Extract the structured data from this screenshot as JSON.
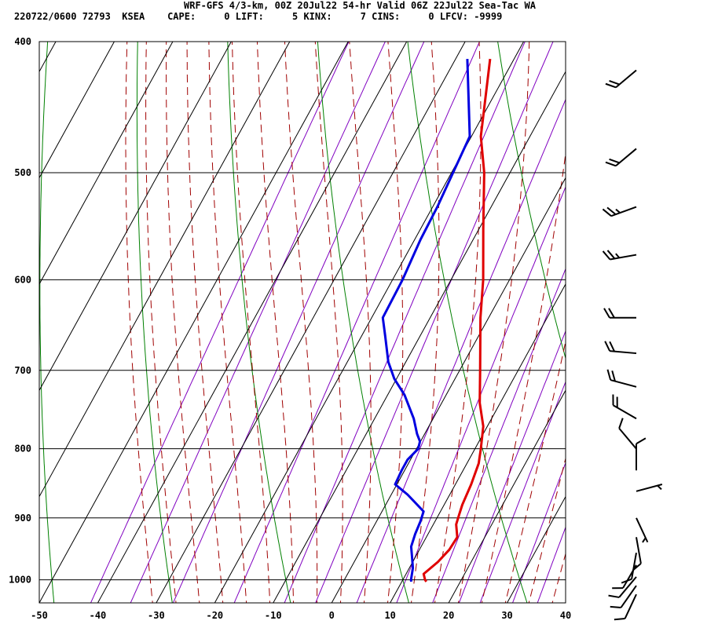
{
  "header": {
    "line1": "WRF-GFS 4/3-km, 00Z 20Jul22 54-hr Valid 06Z 22Jul22 Sea-Tac WA",
    "line2": "220722/0600 72793  KSEA    CAPE:     0 LIFT:     5 KINX:     7 CINS:     0 LFCV: -9999"
  },
  "colors": {
    "temperature": "#e00000",
    "dewpoint": "#0000e0",
    "isotherm_grid": "#000000",
    "dry_adiabat": "#008000",
    "moist_adiabat": "#a00000",
    "mixing_ratio": "#8000c0",
    "wind_barb": "#000000"
  },
  "chart_data": {
    "type": "line",
    "subtype": "skew-T log-P sounding",
    "xlim": [
      -50,
      40
    ],
    "ylim": [
      1040,
      400
    ],
    "y_scale": "log",
    "x_ticks": [
      -50,
      -40,
      -30,
      -20,
      -10,
      0,
      10,
      20,
      30,
      40
    ],
    "y_ticks": [
      400,
      500,
      600,
      700,
      800,
      900,
      1000
    ],
    "grid": true,
    "series": [
      {
        "key": "temperature",
        "pressure": [
          1003,
          1000,
          990,
          970,
          950,
          930,
          910,
          895,
          880,
          850,
          820,
          800,
          770,
          740,
          700,
          640,
          600,
          550,
          500,
          470,
          412
        ],
        "temp_c": [
          14.2,
          13.8,
          13.0,
          14.3,
          15.1,
          15.3,
          13.9,
          13.5,
          13.1,
          12.7,
          12.0,
          11.0,
          9.3,
          6.5,
          3.5,
          -1.4,
          -4.5,
          -9.3,
          -14.4,
          -18.4,
          -24.1
        ]
      },
      {
        "key": "dewpoint",
        "pressure": [
          1003,
          1000,
          980,
          960,
          945,
          925,
          905,
          890,
          865,
          850,
          830,
          815,
          800,
          790,
          780,
          760,
          730,
          710,
          690,
          660,
          640,
          600,
          560,
          530,
          470,
          412
        ],
        "temp_c": [
          11.6,
          11.4,
          10.6,
          9.3,
          8.3,
          7.8,
          7.5,
          7.1,
          2.8,
          -0.3,
          -0.5,
          -0.5,
          0.3,
          -0.1,
          -1.3,
          -3.3,
          -7.1,
          -10.4,
          -13.0,
          -16.0,
          -18.1,
          -18.3,
          -19.0,
          -19.2,
          -20.3,
          -28.0
        ]
      }
    ],
    "wind_barbs": [
      {
        "pressure": 420,
        "direction": 230,
        "speed_kt": 20
      },
      {
        "pressure": 480,
        "direction": 230,
        "speed_kt": 20
      },
      {
        "pressure": 530,
        "direction": 250,
        "speed_kt": 25
      },
      {
        "pressure": 575,
        "direction": 260,
        "speed_kt": 25
      },
      {
        "pressure": 640,
        "direction": 270,
        "speed_kt": 20
      },
      {
        "pressure": 680,
        "direction": 275,
        "speed_kt": 20
      },
      {
        "pressure": 720,
        "direction": 285,
        "speed_kt": 20
      },
      {
        "pressure": 760,
        "direction": 300,
        "speed_kt": 20
      },
      {
        "pressure": 800,
        "direction": 320,
        "speed_kt": 10
      },
      {
        "pressure": 830,
        "direction": 0,
        "speed_kt": 10
      },
      {
        "pressure": 860,
        "direction": 75,
        "speed_kt": 5
      },
      {
        "pressure": 900,
        "direction": 155,
        "speed_kt": 5
      },
      {
        "pressure": 930,
        "direction": 170,
        "speed_kt": 10
      },
      {
        "pressure": 955,
        "direction": 190,
        "speed_kt": 10
      },
      {
        "pressure": 975,
        "direction": 210,
        "speed_kt": 10
      },
      {
        "pressure": 995,
        "direction": 220,
        "speed_kt": 10
      },
      {
        "pressure": 1010,
        "direction": 215,
        "speed_kt": 10
      },
      {
        "pressure": 1025,
        "direction": 205,
        "speed_kt": 10
      }
    ]
  }
}
